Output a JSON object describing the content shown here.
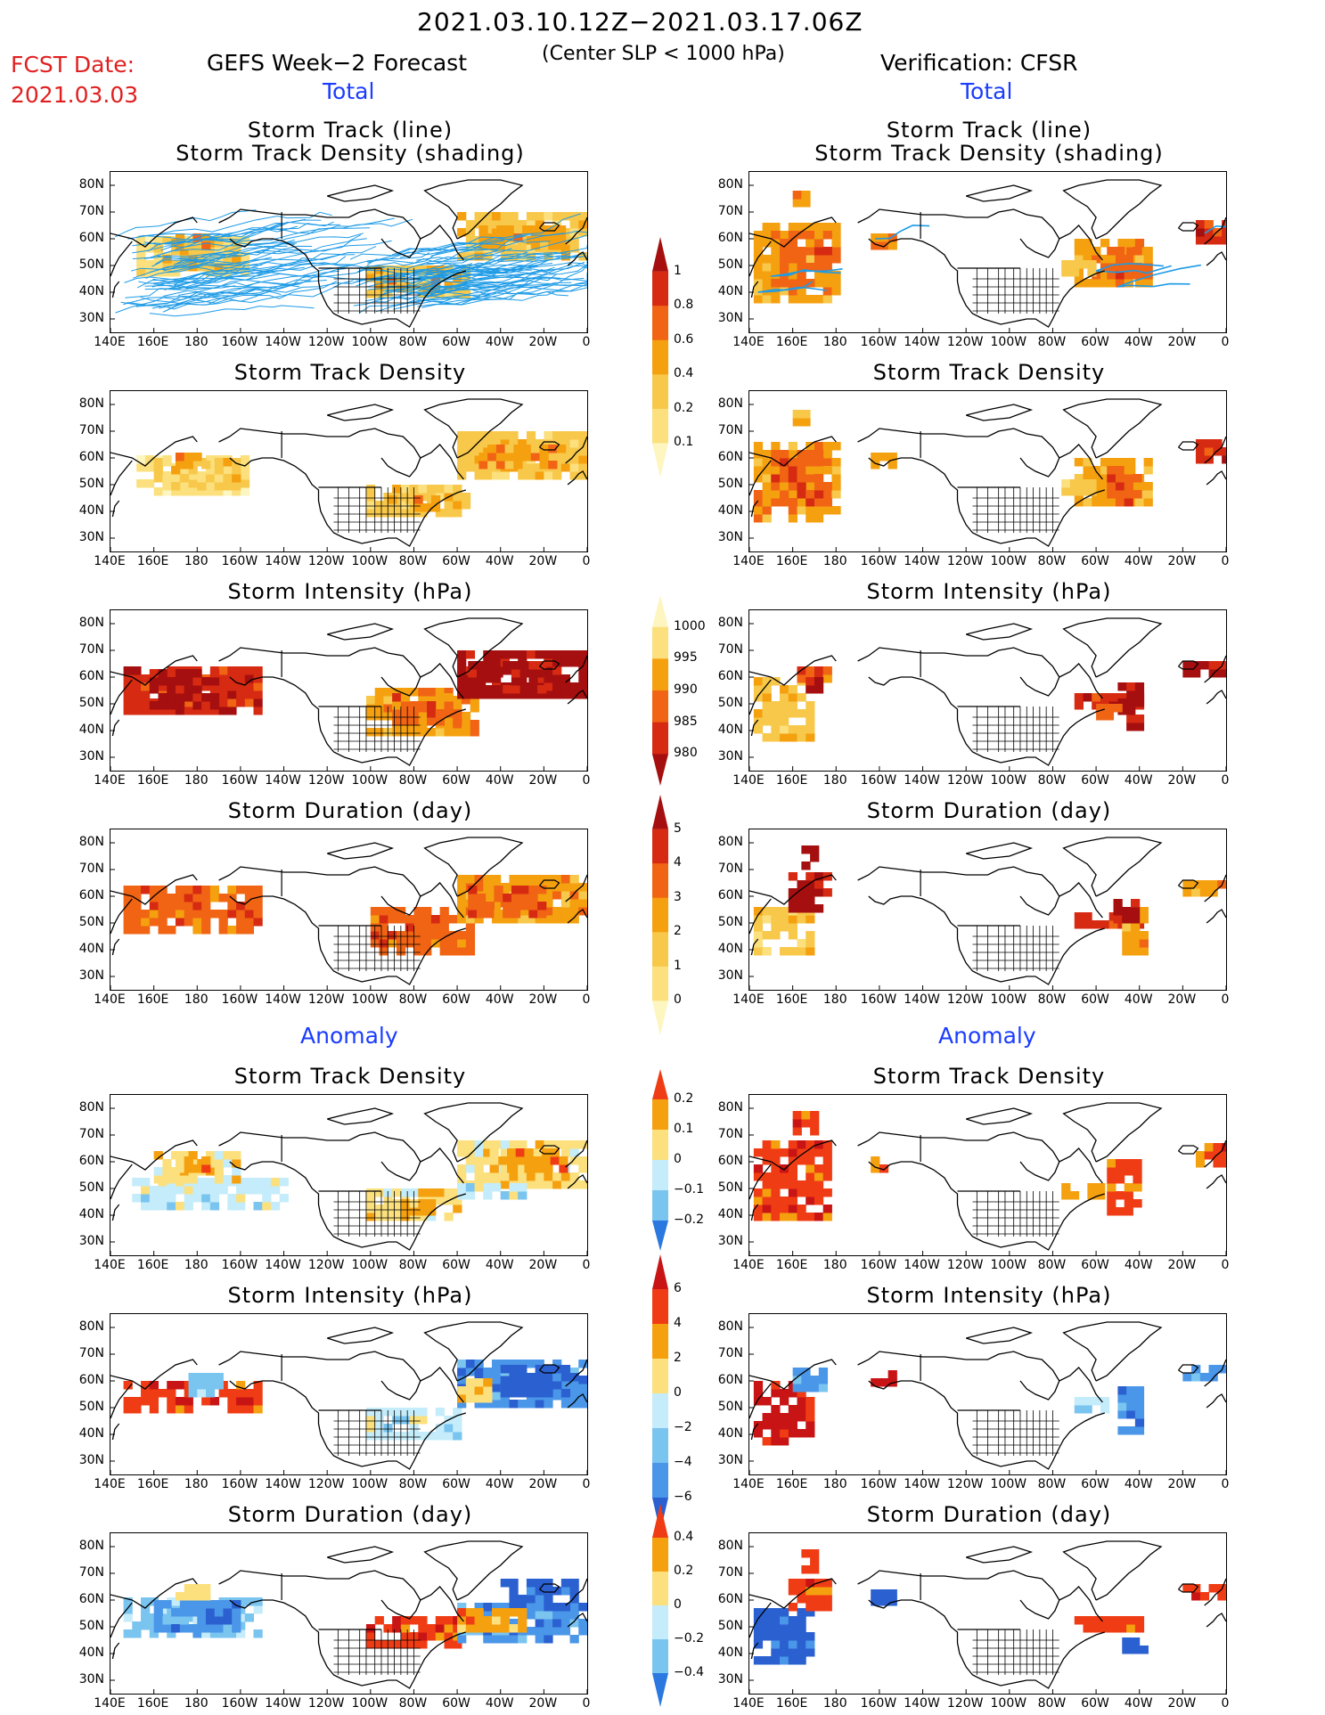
{
  "header": {
    "date_range": "2021.03.10.12Z−2021.03.17.06Z",
    "condition": "(Center SLP < 1000 hPa)",
    "fcst_label": "FCST Date:",
    "fcst_date": "2021.03.03",
    "left_model": "GEFS Week−2 Forecast",
    "right_model": "Verification: CFSR",
    "total_label": "Total",
    "anomaly_label": "Anomaly"
  },
  "axes": {
    "lat_labels": [
      "80N",
      "70N",
      "60N",
      "50N",
      "40N",
      "30N"
    ],
    "lon_labels": [
      "140E",
      "160E",
      "180",
      "160W",
      "140W",
      "120W",
      "100W",
      "80W",
      "60W",
      "40W",
      "20W",
      "0"
    ]
  },
  "panels": {
    "track_line_title": [
      "Storm Track (line)",
      "Storm Track Density (shading)"
    ],
    "density_title": "Storm Track Density",
    "intensity_title": "Storm Intensity (hPa)",
    "duration_title": "Storm Duration (day)"
  },
  "colorbars": {
    "density": {
      "labels": [
        "1",
        "0.8",
        "0.6",
        "0.4",
        "0.2",
        "0.1"
      ],
      "colors": [
        "#a50f0f",
        "#d62a12",
        "#f06414",
        "#f5a00f",
        "#f8c84a",
        "#fbe07d",
        "#fdf6c0"
      ]
    },
    "intensity": {
      "labels": [
        "1000",
        "995",
        "990",
        "985",
        "980"
      ],
      "colors": [
        "#fdf6c0",
        "#fbe07d",
        "#f5a00f",
        "#f06414",
        "#d62a12",
        "#a50f0f"
      ]
    },
    "duration": {
      "labels": [
        "5",
        "4",
        "3",
        "2",
        "1",
        "0"
      ],
      "colors": [
        "#a50f0f",
        "#d62a12",
        "#f06414",
        "#f5a00f",
        "#f8c84a",
        "#fbe07d",
        "#fdf6c0"
      ]
    },
    "anom_density": {
      "labels": [
        "0.2",
        "0.1",
        "0",
        "−0.1",
        "−0.2"
      ],
      "colors": [
        "#f03c14",
        "#f5a00f",
        "#fbe07d",
        "#c4ecfa",
        "#7ac4f0",
        "#2a78e0"
      ]
    },
    "anom_intensity": {
      "labels": [
        "6",
        "4",
        "2",
        "0",
        "−2",
        "−4",
        "−6"
      ],
      "colors": [
        "#c81414",
        "#f03c14",
        "#f5a00f",
        "#fbe07d",
        "#c4ecfa",
        "#7ac4f0",
        "#4a96e8",
        "#2a60d0"
      ]
    },
    "anom_duration": {
      "labels": [
        "0.4",
        "0.2",
        "0",
        "−0.2",
        "−0.4"
      ],
      "colors": [
        "#f03c14",
        "#f5a00f",
        "#fbe07d",
        "#c4ecfa",
        "#7ac4f0",
        "#2a78e0"
      ]
    }
  }
}
